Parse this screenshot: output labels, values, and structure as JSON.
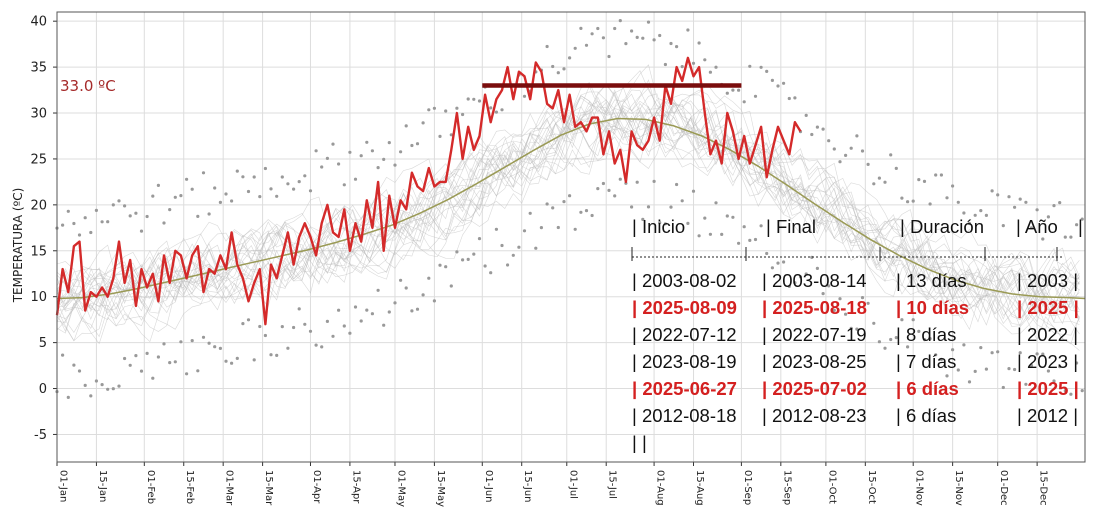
{
  "colors": {
    "observed": "#d42a2a",
    "threshold": "#7a0d0d",
    "threshold_label": "#a52a2a",
    "mean": "#9a9a55",
    "history": "#b9b9b9",
    "history_points": "#999999",
    "highlight_row": "#d42020"
  },
  "chart_data": {
    "type": "line",
    "title": "",
    "xlabel": "",
    "ylabel": "TEMPERATURA (ºC)",
    "ylim": [
      -8,
      41
    ],
    "yticks": [
      -5,
      0,
      5,
      10,
      15,
      20,
      25,
      30,
      35,
      40
    ],
    "xlim": [
      1,
      366
    ],
    "x_unit": "day of year",
    "grid": true,
    "x_ticks": [
      {
        "day": 1,
        "label": "01-Jan"
      },
      {
        "day": 15,
        "label": "15-Jan"
      },
      {
        "day": 32,
        "label": "01-Feb"
      },
      {
        "day": 46,
        "label": "15-Feb"
      },
      {
        "day": 60,
        "label": "01-Mar"
      },
      {
        "day": 74,
        "label": "15-Mar"
      },
      {
        "day": 91,
        "label": "01-Apr"
      },
      {
        "day": 105,
        "label": "15-Apr"
      },
      {
        "day": 121,
        "label": "01-May"
      },
      {
        "day": 135,
        "label": "15-May"
      },
      {
        "day": 152,
        "label": "01-Jun"
      },
      {
        "day": 166,
        "label": "15-Jun"
      },
      {
        "day": 182,
        "label": "01-Jul"
      },
      {
        "day": 196,
        "label": "15-Jul"
      },
      {
        "day": 213,
        "label": "01-Aug"
      },
      {
        "day": 227,
        "label": "15-Aug"
      },
      {
        "day": 244,
        "label": "01-Sep"
      },
      {
        "day": 258,
        "label": "15-Sep"
      },
      {
        "day": 274,
        "label": "01-Oct"
      },
      {
        "day": 288,
        "label": "15-Oct"
      },
      {
        "day": 305,
        "label": "01-Nov"
      },
      {
        "day": 319,
        "label": "15-Nov"
      },
      {
        "day": 335,
        "label": "01-Dec"
      },
      {
        "day": 349,
        "label": "15-Dec"
      }
    ],
    "threshold": {
      "value": 33.0,
      "label": "33.0 ºC",
      "from_day": 152,
      "to_day": 244
    },
    "series": [
      {
        "role": "observed",
        "x": [
          1,
          3,
          5,
          7,
          9,
          11,
          13,
          15,
          17,
          19,
          21,
          23,
          25,
          27,
          29,
          31,
          33,
          35,
          37,
          39,
          41,
          43,
          45,
          47,
          49,
          51,
          53,
          55,
          57,
          59,
          61,
          63,
          65,
          67,
          69,
          71,
          73,
          75,
          77,
          79,
          81,
          83,
          85,
          87,
          89,
          91,
          93,
          95,
          97,
          99,
          101,
          103,
          105,
          107,
          109,
          111,
          113,
          115,
          117,
          119,
          121,
          123,
          125,
          127,
          129,
          131,
          133,
          135,
          137,
          139,
          141,
          143,
          145,
          147,
          149,
          151,
          153,
          155,
          157,
          159,
          161,
          163,
          165,
          167,
          169,
          171,
          173,
          175,
          177,
          179,
          181,
          183,
          185,
          187,
          189,
          191,
          193,
          195,
          197,
          199,
          201,
          203,
          205,
          207,
          209,
          211,
          213,
          215,
          217,
          219,
          221,
          223,
          225,
          227,
          229,
          231,
          233,
          235,
          237,
          239,
          241,
          243,
          245,
          247,
          249,
          251,
          253,
          255,
          257,
          259,
          261,
          263,
          265
        ],
        "y": [
          8.0,
          13.0,
          10.5,
          15.5,
          16.0,
          8.5,
          10.5,
          10.0,
          11.0,
          10.0,
          12.0,
          16.0,
          11.5,
          14.0,
          9.0,
          13.0,
          11.0,
          12.5,
          9.5,
          14.5,
          11.5,
          15.0,
          14.5,
          12.0,
          14.5,
          15.5,
          10.5,
          13.0,
          12.5,
          14.5,
          13.0,
          17.0,
          13.5,
          12.0,
          9.5,
          11.5,
          13.0,
          7.0,
          13.5,
          12.0,
          14.5,
          17.0,
          13.5,
          16.5,
          18.0,
          16.5,
          14.5,
          18.0,
          20.0,
          17.0,
          16.5,
          19.5,
          15.0,
          18.0,
          16.0,
          20.5,
          17.5,
          22.5,
          15.0,
          21.0,
          17.5,
          20.5,
          19.5,
          23.5,
          22.0,
          21.5,
          24.0,
          22.0,
          22.5,
          22.5,
          26.0,
          30.0,
          25.0,
          28.5,
          26.0,
          27.5,
          32.0,
          29.0,
          31.5,
          32.5,
          35.0,
          31.5,
          34.5,
          34.0,
          31.5,
          35.5,
          34.5,
          31.0,
          30.5,
          32.5,
          29.0,
          32.0,
          28.5,
          29.0,
          28.0,
          29.5,
          29.5,
          25.5,
          28.0,
          24.5,
          26.0,
          22.5,
          28.0,
          26.5,
          26.0,
          27.0,
          29.5,
          27.0,
          33.0,
          31.0,
          35.0,
          33.5,
          36.0,
          34.0,
          35.0,
          30.0,
          25.5,
          27.0,
          24.5,
          30.0,
          28.0,
          25.0,
          27.5,
          24.5,
          26.5,
          28.5,
          23.0,
          26.0,
          28.5,
          27.0,
          25.5,
          29.0,
          28.0
        ]
      },
      {
        "role": "mean",
        "x": [
          1,
          10,
          20,
          30,
          40,
          50,
          60,
          70,
          80,
          90,
          100,
          110,
          120,
          130,
          140,
          150,
          160,
          170,
          180,
          190,
          200,
          210,
          220,
          230,
          240,
          250,
          260,
          270,
          280,
          290,
          300,
          310,
          320,
          330,
          340,
          350,
          360,
          366
        ],
        "y": [
          9.8,
          9.9,
          10.3,
          10.9,
          11.6,
          12.3,
          13.0,
          13.7,
          14.4,
          15.1,
          15.9,
          16.8,
          17.8,
          19.1,
          20.6,
          22.3,
          24.1,
          25.9,
          27.6,
          28.8,
          29.4,
          29.3,
          28.6,
          27.5,
          26.0,
          24.2,
          22.2,
          20.1,
          18.1,
          16.2,
          14.5,
          13.0,
          11.8,
          10.9,
          10.3,
          10.0,
          9.9,
          9.8
        ]
      }
    ],
    "table": {
      "header": [
        "Inicio",
        "Final",
        "Duración",
        "Año"
      ],
      "separator": "|--------------|--------------|--------------|-------|",
      "rows": [
        {
          "start": "2003-08-02",
          "end": "2003-08-14",
          "duration": "13 días",
          "year": "2003",
          "highlight": false
        },
        {
          "start": "2025-08-09",
          "end": "2025-08-18",
          "duration": "10 días",
          "year": "2025",
          "highlight": true
        },
        {
          "start": "2022-07-12",
          "end": "2022-07-19",
          "duration": "8 días",
          "year": "2022",
          "highlight": false
        },
        {
          "start": "2023-08-19",
          "end": "2023-08-25",
          "duration": "7 días",
          "year": "2023",
          "highlight": false
        },
        {
          "start": "2025-06-27",
          "end": "2025-07-02",
          "duration": "6 días",
          "year": "2025",
          "highlight": true
        },
        {
          "start": "2012-08-18",
          "end": "2012-08-23",
          "duration": "6 días",
          "year": "2012",
          "highlight": false
        }
      ],
      "footer": "| |"
    }
  }
}
